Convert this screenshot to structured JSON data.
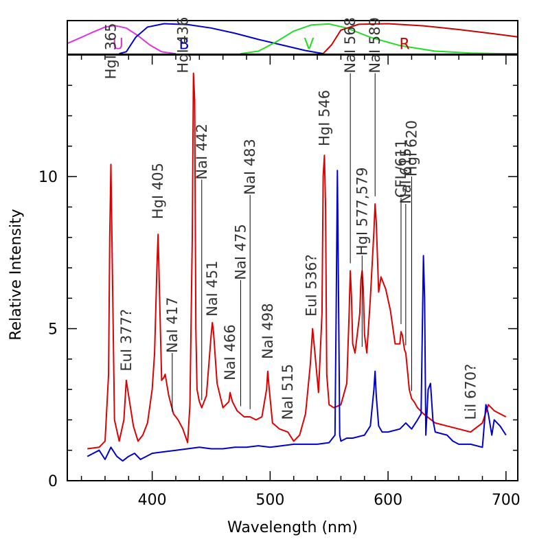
{
  "chart_data": [
    {
      "type": "line",
      "title": "",
      "xlabel": "",
      "ylabel": "",
      "xlim": [
        328,
        710
      ],
      "ylim": [
        0,
        1
      ],
      "grid": false,
      "series": [
        {
          "name": "U",
          "color": "#dd33dd",
          "x": [
            328,
            340,
            350,
            360,
            368,
            378,
            388,
            398,
            408,
            420
          ],
          "y": [
            0.35,
            0.55,
            0.72,
            0.88,
            0.93,
            0.85,
            0.6,
            0.3,
            0.08,
            0.02
          ]
        },
        {
          "name": "B",
          "color": "#0000cc",
          "x": [
            372,
            378,
            386,
            396,
            410,
            430,
            450,
            470,
            490,
            510,
            530,
            545
          ],
          "y": [
            0.02,
            0.08,
            0.55,
            0.88,
            0.99,
            0.96,
            0.85,
            0.68,
            0.48,
            0.3,
            0.12,
            0.02
          ]
        },
        {
          "name": "V",
          "color": "#22dd22",
          "x": [
            475,
            490,
            505,
            520,
            535,
            550,
            565,
            585,
            610,
            640,
            670,
            700,
            710
          ],
          "y": [
            0.02,
            0.1,
            0.4,
            0.75,
            0.95,
            0.98,
            0.85,
            0.55,
            0.28,
            0.1,
            0.04,
            0.02,
            0.02
          ]
        },
        {
          "name": "R",
          "color": "#cc0000",
          "x": [
            545,
            552,
            560,
            575,
            600,
            630,
            660,
            690,
            710
          ],
          "y": [
            0.02,
            0.3,
            0.78,
            0.97,
            0.99,
            0.92,
            0.8,
            0.66,
            0.56
          ]
        }
      ],
      "labels": [
        {
          "text": "U",
          "x": 371,
          "y": 0.35,
          "color": "#dd33dd"
        },
        {
          "text": "B",
          "x": 427,
          "y": 0.35,
          "color": "#0000cc"
        },
        {
          "text": "V",
          "x": 533,
          "y": 0.35,
          "color": "#22dd22"
        },
        {
          "text": "R",
          "x": 614,
          "y": 0.35,
          "color": "#cc0000"
        }
      ]
    },
    {
      "type": "line",
      "title": "",
      "xlabel": "Wavelength (nm)",
      "ylabel": "Relative Intensity",
      "xlim": [
        328,
        710
      ],
      "ylim": [
        0,
        14
      ],
      "x_major_ticks": [
        400,
        500,
        600,
        700
      ],
      "x_minor_step": 20,
      "y_major_ticks": [
        0,
        5,
        10
      ],
      "y_minor_step": 1,
      "grid": false,
      "series": [
        {
          "name": "",
          "color": "#dd0000",
          "x": [
            345,
            355,
            360,
            363,
            364,
            365,
            366,
            368,
            372,
            376,
            378,
            380,
            384,
            388,
            392,
            396,
            400,
            402,
            404,
            405,
            406,
            408,
            410,
            411,
            414,
            418,
            422,
            426,
            430,
            432,
            434,
            435,
            436,
            437,
            438,
            440,
            442,
            446,
            450,
            451,
            452,
            455,
            460,
            465,
            466,
            468,
            472,
            475,
            478,
            483,
            488,
            493,
            497,
            498,
            499,
            502,
            508,
            515,
            520,
            525,
            530,
            534,
            536,
            538,
            541,
            544,
            545,
            546,
            547,
            548,
            550,
            554,
            560,
            565,
            567,
            568,
            569,
            570,
            572,
            576,
            577,
            578,
            579,
            580,
            582,
            585,
            588,
            589,
            590,
            592,
            594,
            598,
            602,
            606,
            610,
            611,
            612,
            614,
            615,
            616,
            618,
            620,
            622,
            625,
            630,
            640,
            650,
            660,
            670,
            680,
            685,
            690,
            695,
            700
          ],
          "y": [
            1.05,
            1.1,
            1.3,
            3.5,
            8.0,
            10.4,
            7.5,
            2.0,
            1.3,
            2.0,
            3.3,
            2.8,
            1.8,
            1.3,
            1.5,
            1.9,
            3.0,
            4.2,
            7.0,
            8.1,
            6.5,
            3.3,
            3.4,
            3.5,
            2.8,
            2.2,
            2.0,
            1.7,
            1.25,
            2.5,
            8.0,
            13.4,
            12.5,
            5.0,
            3.0,
            2.6,
            2.4,
            2.8,
            4.8,
            5.2,
            4.9,
            3.2,
            2.4,
            2.6,
            2.9,
            2.6,
            2.3,
            2.2,
            2.1,
            2.1,
            2.0,
            2.1,
            3.0,
            3.6,
            3.1,
            1.9,
            1.7,
            1.6,
            1.3,
            1.5,
            2.2,
            3.8,
            5.0,
            4.2,
            2.9,
            5.5,
            10.0,
            10.7,
            9.0,
            3.5,
            2.5,
            2.4,
            2.5,
            3.2,
            5.5,
            6.9,
            6.0,
            4.5,
            4.2,
            5.5,
            6.6,
            6.9,
            6.3,
            4.8,
            4.2,
            6.0,
            8.2,
            9.1,
            8.5,
            6.2,
            6.7,
            6.3,
            5.6,
            4.5,
            4.5,
            4.9,
            4.8,
            4.3,
            4.2,
            3.8,
            3.0,
            2.7,
            2.6,
            2.4,
            2.2,
            1.9,
            1.8,
            1.7,
            1.6,
            1.9,
            2.5,
            2.3,
            2.2,
            2.1
          ]
        },
        {
          "name": "",
          "color": "#0000cc",
          "x": [
            345,
            350,
            355,
            360,
            365,
            370,
            375,
            380,
            385,
            390,
            395,
            400,
            410,
            420,
            430,
            440,
            450,
            460,
            470,
            480,
            490,
            500,
            510,
            520,
            530,
            540,
            550,
            555,
            556,
            557,
            558,
            559,
            560,
            565,
            570,
            580,
            585,
            588,
            589,
            590,
            592,
            595,
            600,
            610,
            615,
            620,
            625,
            628,
            630,
            631,
            632,
            634,
            636,
            638,
            640,
            650,
            655,
            660,
            670,
            680,
            683,
            685,
            688,
            690,
            695,
            700
          ],
          "y": [
            0.8,
            0.9,
            1.0,
            0.7,
            1.1,
            0.8,
            0.65,
            0.8,
            0.9,
            0.7,
            0.8,
            0.9,
            0.95,
            1.0,
            1.05,
            1.1,
            1.05,
            1.05,
            1.1,
            1.1,
            1.15,
            1.1,
            1.15,
            1.2,
            1.2,
            1.2,
            1.25,
            1.5,
            5.5,
            10.2,
            6.0,
            1.5,
            1.3,
            1.4,
            1.4,
            1.5,
            1.8,
            3.0,
            3.6,
            2.8,
            1.8,
            1.6,
            1.6,
            1.7,
            1.9,
            1.7,
            2.0,
            2.2,
            7.4,
            6.0,
            1.5,
            3.0,
            3.2,
            2.0,
            1.6,
            1.5,
            1.3,
            1.2,
            1.2,
            1.1,
            2.5,
            2.2,
            1.5,
            2.0,
            1.8,
            1.5
          ]
        }
      ],
      "annotations": [
        {
          "text": "HgI 365",
          "x": 365,
          "y": 13.2,
          "pointer": false
        },
        {
          "text": "EuI 377?",
          "x": 378,
          "y": 3.6,
          "pointer": false
        },
        {
          "text": "HgI 405",
          "x": 405,
          "y": 8.6,
          "pointer": false
        },
        {
          "text": "NaI 417",
          "x": 417,
          "y": 4.2,
          "pointer": true
        },
        {
          "text": "HgI 436",
          "x": 426,
          "y": 13.4,
          "pointer": false
        },
        {
          "text": "NaI 442",
          "x": 442,
          "y": 9.9,
          "pointer": true
        },
        {
          "text": "NaI 451",
          "x": 451,
          "y": 5.4,
          "pointer": false
        },
        {
          "text": "NaI 466",
          "x": 466,
          "y": 3.3,
          "pointer": false
        },
        {
          "text": "NaI 475",
          "x": 475,
          "y": 6.6,
          "pointer": true
        },
        {
          "text": "NaI 483",
          "x": 483,
          "y": 9.4,
          "pointer": true
        },
        {
          "text": "NaI 498",
          "x": 498,
          "y": 4.0,
          "pointer": false
        },
        {
          "text": "NaI 515",
          "x": 515,
          "y": 2.0,
          "pointer": false
        },
        {
          "text": "EuI 536?",
          "x": 535,
          "y": 5.4,
          "pointer": false
        },
        {
          "text": "HgI 546",
          "x": 546,
          "y": 11.0,
          "pointer": false
        },
        {
          "text": "NaI 568",
          "x": 568,
          "y": 13.4,
          "pointer": true
        },
        {
          "text": "HgI 577,579",
          "x": 578,
          "y": 7.4,
          "pointer": true
        },
        {
          "text": "NaI 589",
          "x": 589,
          "y": 13.4,
          "pointer": true
        },
        {
          "text": "CFL/611",
          "x": 611,
          "y": 9.3,
          "pointer": true
        },
        {
          "text": "NaI 615",
          "x": 615,
          "y": 9.1,
          "pointer": true
        },
        {
          "text": "HgI 620",
          "x": 620,
          "y": 10.0,
          "pointer": true
        },
        {
          "text": "LiI 670?",
          "x": 670,
          "y": 2.0,
          "pointer": false
        }
      ]
    }
  ]
}
